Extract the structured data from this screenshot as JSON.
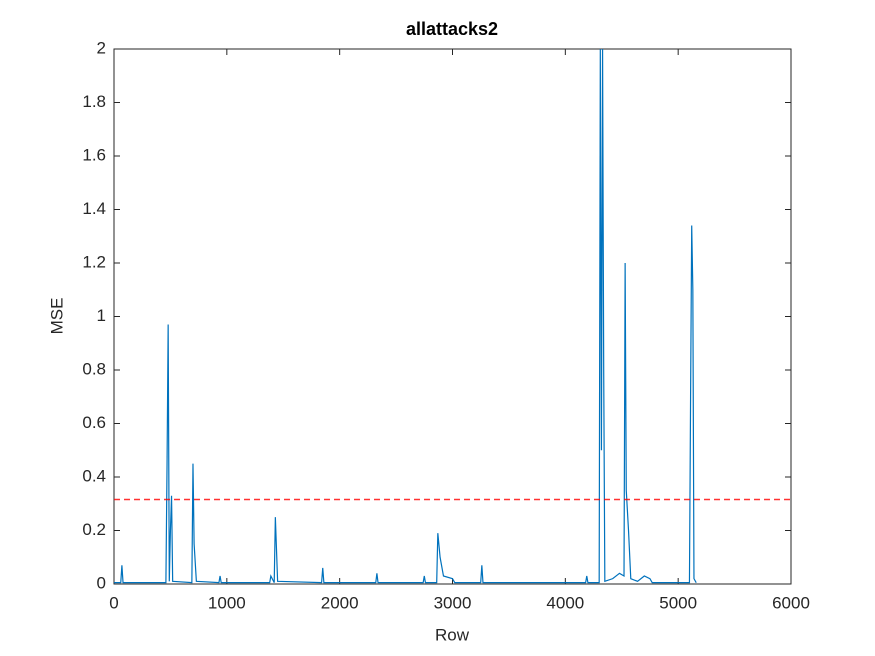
{
  "chart_data": {
    "type": "line",
    "title": "allattacks2",
    "x_label": "Row",
    "y_label": "MSE",
    "color": "#0072bd",
    "x": [
      0,
      60,
      70,
      80,
      460,
      470,
      480,
      490,
      500,
      510,
      520,
      690,
      700,
      710,
      730,
      930,
      940,
      950,
      1380,
      1390,
      1420,
      1430,
      1450,
      1840,
      1850,
      1860,
      2320,
      2330,
      2340,
      2740,
      2750,
      2760,
      2860,
      2870,
      2890,
      2920,
      3000,
      3020,
      3250,
      3260,
      3270,
      4180,
      4190,
      4200,
      4300,
      4310,
      4320,
      4330,
      4340,
      4350,
      4420,
      4480,
      4520,
      4530,
      4540,
      4560,
      4580,
      4640,
      4700,
      4750,
      4770,
      5100,
      5110,
      5120,
      5130,
      5140,
      5160
    ],
    "values": [
      0.005,
      0.005,
      0.07,
      0.005,
      0.005,
      0.44,
      0.97,
      0.01,
      0.2,
      0.33,
      0.01,
      0.005,
      0.45,
      0.15,
      0.01,
      0.005,
      0.03,
      0.005,
      0.005,
      0.03,
      0.005,
      0.25,
      0.01,
      0.005,
      0.06,
      0.005,
      0.005,
      0.04,
      0.005,
      0.005,
      0.03,
      0.005,
      0.005,
      0.19,
      0.1,
      0.03,
      0.02,
      0.005,
      0.005,
      0.07,
      0.005,
      0.005,
      0.03,
      0.005,
      0.005,
      2,
      0.5,
      2,
      0.8,
      0.01,
      0.02,
      0.04,
      0.03,
      1.2,
      0.35,
      0.2,
      0.02,
      0.01,
      0.03,
      0.02,
      0.005,
      0.005,
      0.7,
      1.34,
      1.1,
      0.02,
      0.005
    ],
    "threshold": {
      "value": 0.316,
      "color": "#ff0000",
      "style": "dashed"
    },
    "xlim": [
      0,
      6000
    ],
    "xticks": [
      0,
      1000,
      2000,
      3000,
      4000,
      5000,
      6000
    ],
    "ylim": [
      0,
      2
    ],
    "yticks": [
      0,
      0.2,
      0.4,
      0.6,
      0.8,
      1,
      1.2,
      1.4,
      1.6,
      1.8,
      2
    ]
  }
}
